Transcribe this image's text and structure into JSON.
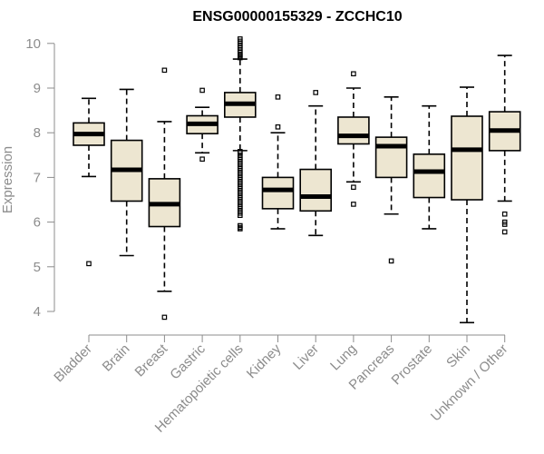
{
  "chart_data": {
    "type": "boxplot",
    "title": "ENSG00000155329 - ZCCHC10",
    "xlabel": "",
    "ylabel": "Expression",
    "ylim": [
      3.7,
      10.1
    ],
    "yticks": [
      4,
      5,
      6,
      7,
      8,
      9,
      10
    ],
    "categories": [
      "Bladder",
      "Brain",
      "Breast",
      "Gastric",
      "Hematopoietic cells",
      "Kidney",
      "Liver",
      "Lung",
      "Pancreas",
      "Prostate",
      "Skin",
      "Unknown / Other"
    ],
    "series": [
      {
        "name": "Bladder",
        "whisker_low": 7.02,
        "q1": 7.72,
        "median": 7.97,
        "q3": 8.22,
        "whisker_high": 8.77,
        "outliers": [
          5.07
        ]
      },
      {
        "name": "Brain",
        "whisker_low": 5.25,
        "q1": 6.47,
        "median": 7.17,
        "q3": 7.83,
        "whisker_high": 8.97,
        "outliers": []
      },
      {
        "name": "Breast",
        "whisker_low": 4.45,
        "q1": 5.9,
        "median": 6.4,
        "q3": 6.97,
        "whisker_high": 8.25,
        "outliers": [
          9.4,
          3.87
        ]
      },
      {
        "name": "Gastric",
        "whisker_low": 7.55,
        "q1": 7.98,
        "median": 8.2,
        "q3": 8.38,
        "whisker_high": 8.57,
        "outliers": [
          8.95,
          7.41
        ]
      },
      {
        "name": "Hematopoietic cells",
        "whisker_low": 7.6,
        "q1": 8.35,
        "median": 8.65,
        "q3": 8.9,
        "whisker_high": 9.65,
        "outliers": [
          10.1,
          10.05,
          10.0,
          9.95,
          9.9,
          9.85,
          9.8,
          9.75,
          9.72,
          9.68,
          7.58,
          7.55,
          7.5,
          7.45,
          7.4,
          7.35,
          7.3,
          7.25,
          7.2,
          7.15,
          7.1,
          7.05,
          7.0,
          6.95,
          6.9,
          6.85,
          6.8,
          6.75,
          6.7,
          6.65,
          6.6,
          6.55,
          6.5,
          6.45,
          6.4,
          6.35,
          6.3,
          6.25,
          6.2,
          6.15,
          5.92,
          5.88,
          5.85
        ]
      },
      {
        "name": "Kidney",
        "whisker_low": 5.85,
        "q1": 6.3,
        "median": 6.72,
        "q3": 7.0,
        "whisker_high": 8.0,
        "outliers": [
          8.8,
          8.13
        ]
      },
      {
        "name": "Liver",
        "whisker_low": 5.7,
        "q1": 6.25,
        "median": 6.57,
        "q3": 7.18,
        "whisker_high": 8.6,
        "outliers": [
          8.9
        ]
      },
      {
        "name": "Lung",
        "whisker_low": 6.9,
        "q1": 7.75,
        "median": 7.93,
        "q3": 8.35,
        "whisker_high": 9.0,
        "outliers": [
          9.32,
          6.78,
          6.4
        ]
      },
      {
        "name": "Pancreas",
        "whisker_low": 6.18,
        "q1": 7.0,
        "median": 7.7,
        "q3": 7.9,
        "whisker_high": 8.8,
        "outliers": [
          5.13
        ]
      },
      {
        "name": "Prostate",
        "whisker_low": 5.85,
        "q1": 6.55,
        "median": 7.13,
        "q3": 7.52,
        "whisker_high": 8.6,
        "outliers": []
      },
      {
        "name": "Skin",
        "whisker_low": 3.75,
        "q1": 6.5,
        "median": 7.62,
        "q3": 8.37,
        "whisker_high": 9.02,
        "outliers": []
      },
      {
        "name": "Unknown / Other",
        "whisker_low": 6.47,
        "q1": 7.6,
        "median": 8.05,
        "q3": 8.47,
        "whisker_high": 9.73,
        "outliers": [
          6.18,
          6.0,
          5.95,
          5.78
        ]
      }
    ],
    "colors": {
      "box_fill": "#ede6d1",
      "box_stroke": "#000000",
      "axis": "#8c8c8c",
      "title": "#000000"
    }
  }
}
